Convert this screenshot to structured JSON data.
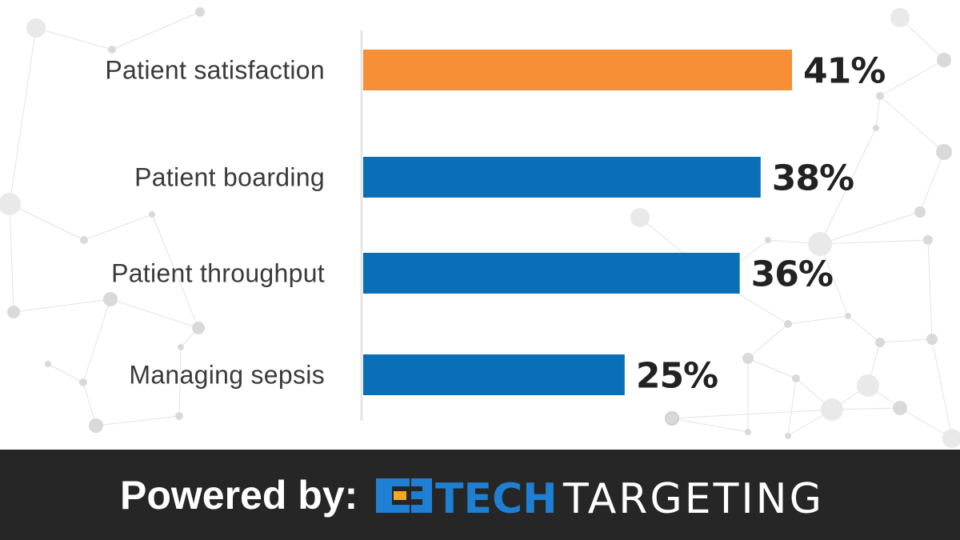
{
  "chart_data": {
    "type": "bar",
    "orientation": "horizontal",
    "title": "",
    "xlabel": "",
    "ylabel": "",
    "categories": [
      "Patient satisfaction",
      "Patient boarding",
      "Patient throughput",
      "Managing sepsis"
    ],
    "values": [
      41,
      38,
      36,
      25
    ],
    "value_labels": [
      "41%",
      "38%",
      "36%",
      "25%"
    ],
    "xlim": [
      0,
      41
    ],
    "grid": false,
    "legend": "none",
    "colors": [
      "#F78F36",
      "#0A6FB7",
      "#0A6FB7",
      "#0A6FB7"
    ]
  },
  "footer": {
    "powered_label": "Powered by:",
    "brand_tech": "TECH",
    "brand_targeting": "TARGETING",
    "brand_colors": {
      "tech": "#1E7FD3",
      "accent": "#F5A623"
    }
  }
}
